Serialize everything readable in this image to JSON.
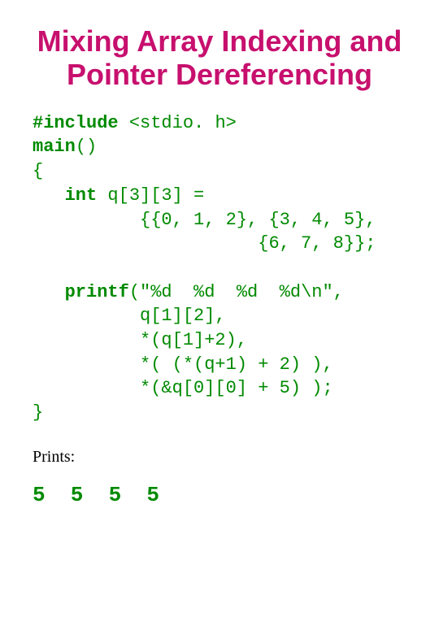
{
  "title": "Mixing Array Indexing and Pointer Dereferencing",
  "title_color": "#c7106e",
  "code_color": "#008a00",
  "code": {
    "l1a": "#include",
    "l1b": " <stdio. h>",
    "l2a": "main",
    "l2b": "()",
    "l3": "{",
    "l4a": "   int",
    "l4b": " q[3][3] =",
    "l5": "          {{0, 1, 2}, {3, 4, 5},",
    "l6": "                     {6, 7, 8}};",
    "blank": "",
    "l7a": "   printf",
    "l7b": "(\"%d  %d  %d  %d\\n\",",
    "l8": "          q[1][2],",
    "l9": "          *(q[1]+2),",
    "l10": "          *( (*(q+1) + 2) ),",
    "l11": "          *(&q[0][0] + 5) );",
    "l12": "}"
  },
  "prints_label": "Prints:",
  "prints_label_color": "#000000",
  "output": "5  5  5  5",
  "output_color": "#008a00",
  "background_color": "#ffffff"
}
